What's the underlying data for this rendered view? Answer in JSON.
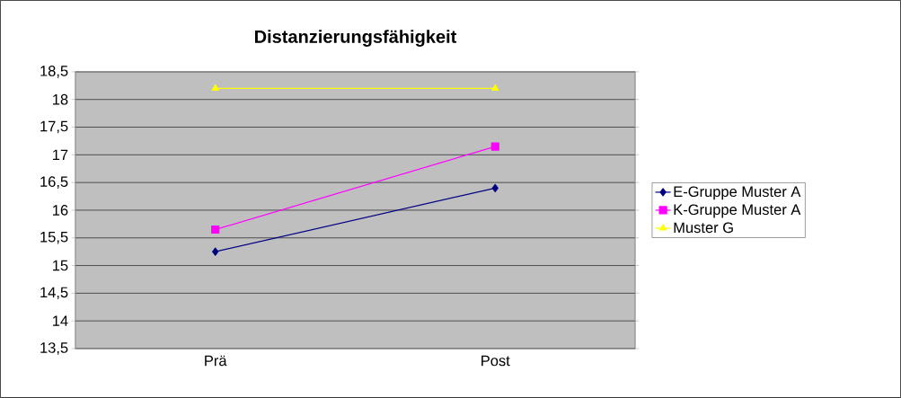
{
  "chart_data": {
    "type": "line",
    "title": "Distanzierungsfähigkeit",
    "categories": [
      "Prä",
      "Post"
    ],
    "series": [
      {
        "name": "E-Gruppe Muster A",
        "color": "#000080",
        "marker": "diamond",
        "values": [
          15.25,
          16.4
        ]
      },
      {
        "name": "K-Gruppe Muster A",
        "color": "#ff00ff",
        "marker": "square",
        "values": [
          15.65,
          17.15
        ]
      },
      {
        "name": "Muster G",
        "color": "#ffff00",
        "marker": "triangle",
        "values": [
          18.2,
          18.2
        ]
      }
    ],
    "ylim": [
      13.5,
      18.5
    ],
    "yticks": [
      {
        "value": 13.5,
        "label": "13,5"
      },
      14,
      {
        "value": 14.5,
        "label": "14,5"
      },
      15,
      {
        "value": 15.5,
        "label": "15,5"
      },
      16,
      {
        "value": 16.5,
        "label": "16,5"
      },
      17,
      {
        "value": 17.5,
        "label": "17,5"
      },
      18,
      {
        "value": 18.5,
        "label": "18,5"
      }
    ],
    "grid": "y",
    "legend": "right",
    "line_style": "solid"
  }
}
